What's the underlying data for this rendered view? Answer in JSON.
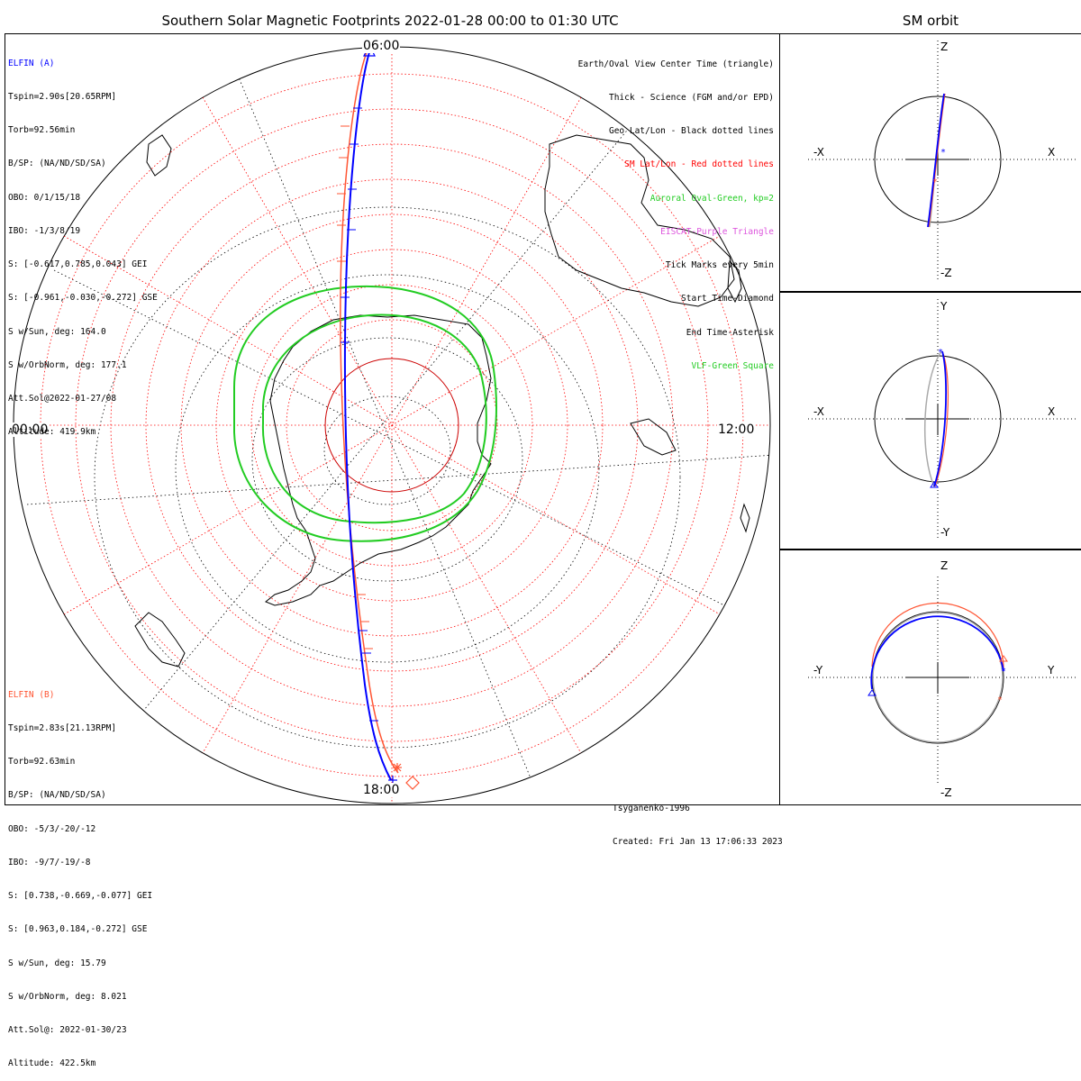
{
  "title": "Southern Solar Magnetic Footprints 2022-01-28 00:00 to 01:30 UTC",
  "orbit_title": "SM orbit",
  "mlt_labels": {
    "top": "06:00",
    "bottom": "18:00",
    "left": "00:00",
    "right": "12:00"
  },
  "elfin_a": {
    "name": "ELFIN (A)",
    "lines": [
      "Tspin=2.90s[20.65RPM]",
      "Torb=92.56min",
      "B/SP: (NA/ND/SD/SA)",
      "OBO: 0/1/15/18",
      "IBO: -1/3/8/19",
      "S: [-0.617,0.785,0.043] GEI",
      "S: [-0.961,-0.030,-0.272] GSE",
      "S w/Sun, deg: 164.0",
      "S w/OrbNorm, deg: 177.1",
      "Att.Sol@2022-01-27/08",
      "Altitude: 419.9km"
    ]
  },
  "elfin_b": {
    "name": "ELFIN (B)",
    "lines": [
      "Tspin=2.83s[21.13RPM]",
      "Torb=92.63min",
      "B/SP: (NA/ND/SD/SA)",
      "OBO: -5/3/-20/-12",
      "IBO: -9/7/-19/-8",
      "S: [0.738,-0.669,-0.077] GEI",
      "S: [0.963,0.184,-0.272] GSE",
      "S w/Sun, deg: 15.79",
      "S w/OrbNorm, deg: 8.021",
      "Att.Sol@: 2022-01-30/23",
      "Altitude: 422.5km"
    ]
  },
  "legend": [
    {
      "text": "Earth/Oval View Center Time (triangle)",
      "color": "#000000"
    },
    {
      "text": "Thick - Science (FGM and/or EPD)",
      "color": "#000000"
    },
    {
      "text": "Geo Lat/Lon - Black dotted lines",
      "color": "#000000"
    },
    {
      "text": "SM Lat/Lon - Red dotted lines",
      "color": "#ff0000"
    },
    {
      "text": "Auroral Oval-Green, kp=2",
      "color": "#22cc22"
    },
    {
      "text": "EISCAT-Purple Triangle",
      "color": "#dd55dd"
    },
    {
      "text": "Tick Marks every 5min",
      "color": "#000000"
    },
    {
      "text": "Start Time-Diamond",
      "color": "#000000"
    },
    {
      "text": "End Time-Asterisk",
      "color": "#000000"
    },
    {
      "text": "VLF-Green Square",
      "color": "#22cc22"
    }
  ],
  "credits": {
    "model": "Tsyganenko-1996",
    "created": "Created: Fri Jan 13 17:06:33 2023"
  },
  "orbit_panels": [
    {
      "top": "Z",
      "bottom": "-Z",
      "left": "-X",
      "right": "X"
    },
    {
      "top": "Y",
      "bottom": "-Y",
      "left": "-X",
      "right": "X"
    },
    {
      "top": "Z",
      "bottom": "-Z",
      "left": "-Y",
      "right": "Y"
    }
  ],
  "colors": {
    "elfin_a": "#0000ff",
    "elfin_b": "#ff5533",
    "sm_grid": "#ff0000",
    "oval": "#22cc22",
    "geo_grid": "#000000",
    "orbit_ref": "#aaaaaa"
  }
}
